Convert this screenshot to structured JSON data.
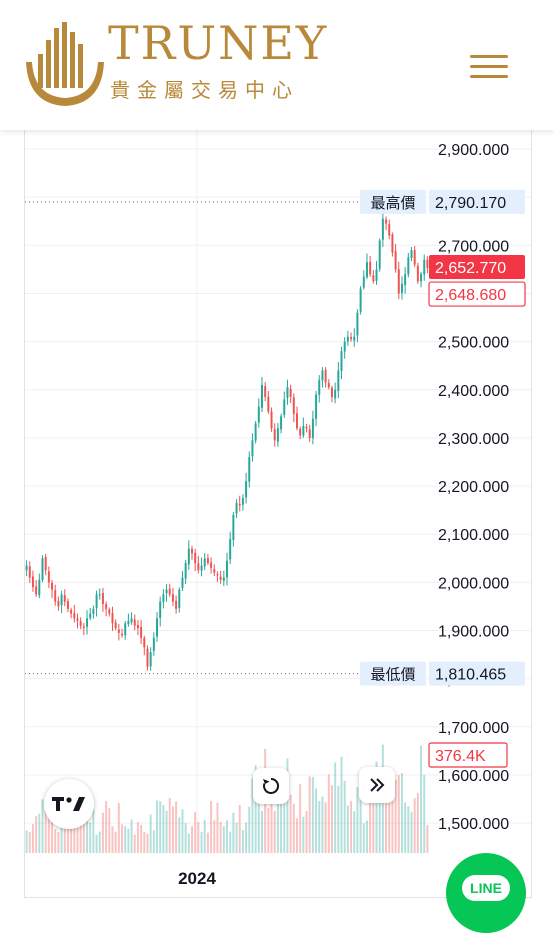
{
  "header": {
    "brand": "TRUNEY",
    "subtitle": "貴金屬交易中心",
    "brand_color": "#b8893a"
  },
  "icons": {
    "logo": "bar-arc-logo-icon",
    "menu": "hamburger-menu-icon",
    "reset": "reset-rotate-icon",
    "scroll": "double-chevron-right-icon",
    "tradingview": "tradingview-logo-icon",
    "line": "line-chat-icon"
  },
  "line_button": {
    "label": "LINE",
    "color": "#06c755"
  },
  "chart_data": {
    "type": "candlestick",
    "x_tick_labels": [
      "2024"
    ],
    "price_axis": {
      "ticks": [
        2900,
        2800,
        2700,
        2600,
        2500,
        2400,
        2300,
        2200,
        2100,
        2000,
        1900,
        1800,
        1700,
        1600,
        1500
      ],
      "tick_labels": [
        "2,900.000",
        "2,800.000",
        "2,700.000",
        "2,600.000",
        "2,500.000",
        "2,400.000",
        "2,300.000",
        "2,200.000",
        "2,100.000",
        "2,000.000",
        "1,900.000",
        "1,800.000",
        "1,700.000",
        "1,600.000",
        "1,500.000"
      ],
      "range": [
        1460,
        2920
      ]
    },
    "high_marker": {
      "label": "最高價",
      "value": 2790.17,
      "value_label": "2,790.170"
    },
    "low_marker": {
      "label": "最低價",
      "value": 1810.465,
      "value_label": "1,810.465"
    },
    "last_price": {
      "value": 2652.77,
      "label": "2,652.770",
      "color": "#f23645"
    },
    "prev_close": {
      "value": 2648.68,
      "label": "2,648.680"
    },
    "volume_label": "376.4K",
    "up_color": "#26a69a",
    "down_color": "#ef5350",
    "close_series": [
      2035,
      2010,
      1990,
      1975,
      2005,
      2050,
      2025,
      2000,
      1985,
      1960,
      1950,
      1975,
      1960,
      1945,
      1935,
      1925,
      1920,
      1910,
      1905,
      1925,
      1935,
      1945,
      1975,
      1975,
      1955,
      1945,
      1935,
      1915,
      1905,
      1895,
      1890,
      1915,
      1920,
      1925,
      1910,
      1905,
      1885,
      1865,
      1825,
      1855,
      1885,
      1925,
      1960,
      1975,
      1985,
      1975,
      1960,
      1945,
      1985,
      2010,
      2040,
      2070,
      2060,
      2040,
      2025,
      2035,
      2050,
      2040,
      2030,
      2020,
      2015,
      2005,
      2010,
      2045,
      2090,
      2140,
      2165,
      2160,
      2175,
      2210,
      2260,
      2295,
      2330,
      2365,
      2410,
      2385,
      2355,
      2320,
      2295,
      2320,
      2345,
      2380,
      2405,
      2385,
      2350,
      2320,
      2305,
      2325,
      2320,
      2300,
      2340,
      2390,
      2420,
      2440,
      2415,
      2405,
      2385,
      2400,
      2440,
      2480,
      2500,
      2510,
      2505,
      2510,
      2560,
      2610,
      2635,
      2665,
      2640,
      2625,
      2650,
      2710,
      2755,
      2745,
      2720,
      2685,
      2650,
      2600,
      2620,
      2640,
      2675,
      2690,
      2660,
      2625,
      2640,
      2670,
      2652.77
    ]
  }
}
